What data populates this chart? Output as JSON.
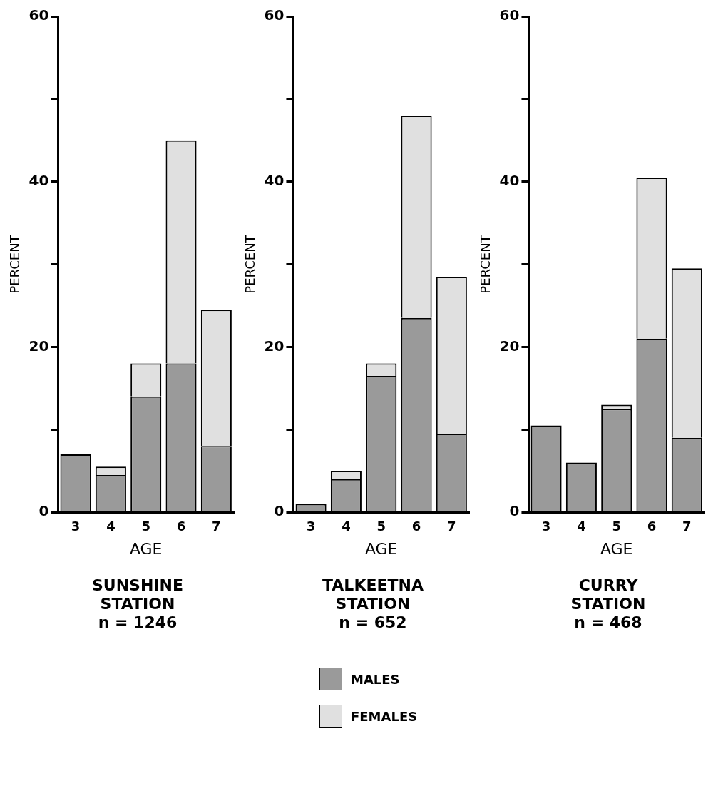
{
  "chart_data": [
    {
      "type": "bar",
      "title": "SUNSHINE STATION",
      "subtitle": "n = 1246",
      "xlabel": "AGE",
      "ylabel": "PERCENT",
      "categories": [
        "3",
        "4",
        "5",
        "6",
        "7"
      ],
      "stacked": true,
      "ylim": [
        0,
        60
      ],
      "yticks": [
        0,
        {
          "value": 10,
          "label": null
        },
        20,
        {
          "value": 30,
          "label": null
        },
        40,
        {
          "value": 50,
          "label": null
        },
        60
      ],
      "series": [
        {
          "color": "#9a9a9a",
          "values": [
            7,
            4.5,
            14,
            18,
            8
          ]
        },
        {
          "color": "#e0e0e0",
          "values": [
            0,
            1,
            4,
            27,
            16.5
          ]
        }
      ]
    },
    {
      "type": "bar",
      "title": "TALKEETNA STATION",
      "subtitle": "n = 652",
      "xlabel": "AGE",
      "ylabel": "PERCENT",
      "categories": [
        "3",
        "4",
        "5",
        "6",
        "7"
      ],
      "stacked": true,
      "ylim": [
        0,
        60
      ],
      "yticks": [
        0,
        {
          "value": 10,
          "label": null
        },
        20,
        {
          "value": 30,
          "label": null
        },
        40,
        {
          "value": 50,
          "label": null
        },
        60
      ],
      "legend": "bottom",
      "series": [
        {
          "name": "MALES",
          "color": "#9a9a9a",
          "values": [
            1,
            4,
            16.5,
            23.5,
            9.5
          ]
        },
        {
          "name": "FEMALES",
          "color": "#e0e0e0",
          "values": [
            0,
            1,
            1.5,
            24.5,
            19
          ]
        }
      ]
    },
    {
      "type": "bar",
      "title": "CURRY STATION",
      "subtitle": "n = 468",
      "xlabel": "AGE",
      "ylabel": "PERCENT",
      "categories": [
        "3",
        "4",
        "5",
        "6",
        "7"
      ],
      "stacked": true,
      "ylim": [
        0,
        60
      ],
      "yticks": [
        0,
        {
          "value": 10,
          "label": null
        },
        20,
        {
          "value": 30,
          "label": null
        },
        40,
        {
          "value": 50,
          "label": null
        },
        60
      ],
      "series": [
        {
          "color": "#9a9a9a",
          "values": [
            10.5,
            6,
            12.5,
            21,
            9
          ]
        },
        {
          "color": "#e0e0e0",
          "values": [
            0,
            0,
            0.5,
            19.5,
            20.5
          ]
        }
      ]
    }
  ]
}
